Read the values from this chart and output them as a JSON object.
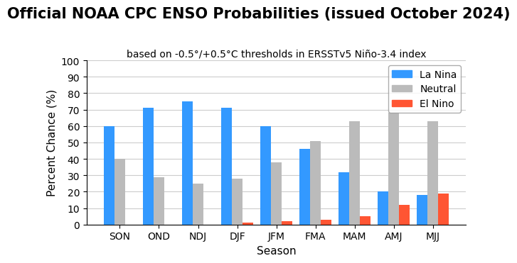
{
  "title": "Official NOAA CPC ENSO Probabilities (issued October 2024)",
  "subtitle": "based on -0.5°/+0.5°C thresholds in ERSSTv5 Niño-3.4 index",
  "xlabel": "Season",
  "ylabel": "Percent Chance (%)",
  "seasons": [
    "SON",
    "OND",
    "NDJ",
    "DJF",
    "JFM",
    "FMA",
    "MAM",
    "AMJ",
    "MJJ"
  ],
  "la_nina": [
    60,
    71,
    75,
    71,
    60,
    46,
    32,
    20,
    18
  ],
  "neutral": [
    40,
    29,
    25,
    28,
    38,
    51,
    63,
    68,
    63
  ],
  "el_nino": [
    0,
    0,
    0,
    1,
    2,
    3,
    5,
    12,
    19
  ],
  "la_nina_color": "#3399FF",
  "neutral_color": "#BBBBBB",
  "el_nino_color": "#FF5533",
  "ylim": [
    0,
    100
  ],
  "yticks": [
    0,
    10,
    20,
    30,
    40,
    50,
    60,
    70,
    80,
    90,
    100
  ],
  "title_fontsize": 15,
  "subtitle_fontsize": 10,
  "label_fontsize": 11,
  "tick_fontsize": 10,
  "legend_fontsize": 10,
  "bar_width": 0.27,
  "background_color": "#FFFFFF",
  "grid_color": "#CCCCCC"
}
